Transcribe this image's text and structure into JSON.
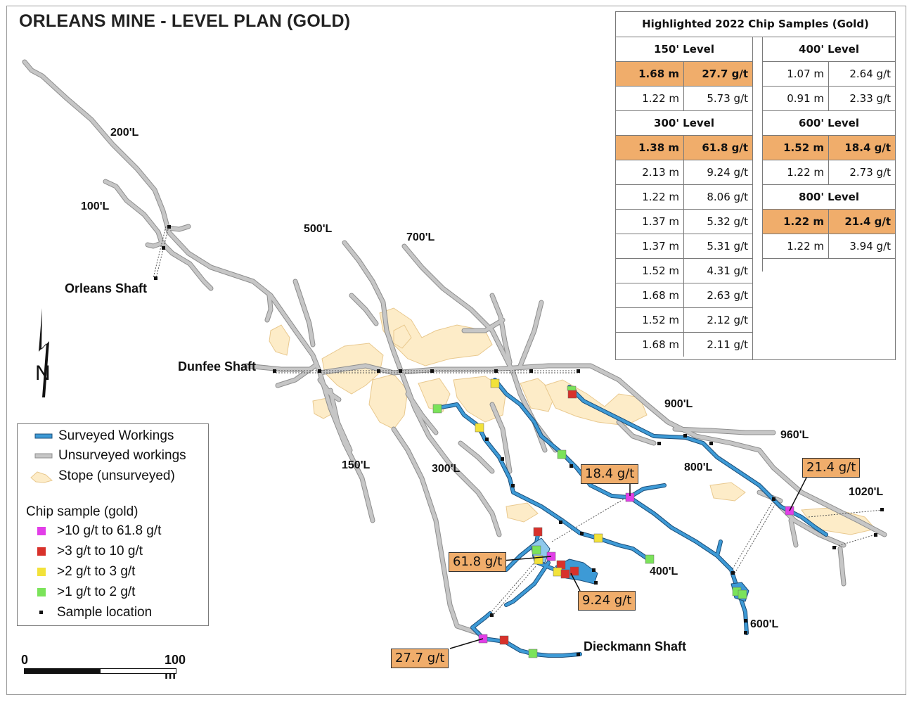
{
  "title": "ORLEANS MINE - LEVEL PLAN (GOLD)",
  "colors": {
    "surveyed": "#3d9ad6",
    "unsurveyed": "#c3c3c3",
    "stope": "#fdecc8",
    "highlight": "#f0ad6b",
    "grade_gt10": "#e23ee8",
    "grade_3_10": "#d8312b",
    "grade_2_3": "#f2e23a",
    "grade_1_2": "#7be35a"
  },
  "level_labels": [
    "200'L",
    "100'L",
    "500'L",
    "700'L",
    "150'L",
    "300'L",
    "900'L",
    "960'L",
    "800'L",
    "1020'L",
    "400'L",
    "600'L"
  ],
  "shafts": {
    "orleans": "Orleans Shaft",
    "dunfee": "Dunfee Shaft",
    "dieckmann": "Dieckmann Shaft"
  },
  "north_label": "N",
  "callouts": {
    "c1": "18.4 g/t",
    "c2": "21.4 g/t",
    "c3": "61.8 g/t",
    "c4": "9.24 g/t",
    "c5": "27.7 g/t"
  },
  "table": {
    "title": "Highlighted 2022 Chip Samples (Gold)",
    "left_groups": [
      {
        "level": "150' Level",
        "rows": [
          {
            "width": "1.68 m",
            "grade": "27.7 g/t",
            "highlight": true
          },
          {
            "width": "1.22 m",
            "grade": "5.73 g/t",
            "highlight": false
          }
        ]
      },
      {
        "level": "300' Level",
        "rows": [
          {
            "width": "1.38 m",
            "grade": "61.8 g/t",
            "highlight": true
          },
          {
            "width": "2.13 m",
            "grade": "9.24 g/t",
            "highlight": false
          },
          {
            "width": "1.22 m",
            "grade": "8.06 g/t",
            "highlight": false
          },
          {
            "width": "1.37 m",
            "grade": "5.32 g/t",
            "highlight": false
          },
          {
            "width": "1.37 m",
            "grade": "5.31 g/t",
            "highlight": false
          },
          {
            "width": "1.52 m",
            "grade": "4.31 g/t",
            "highlight": false
          },
          {
            "width": "1.68 m",
            "grade": "2.63 g/t",
            "highlight": false
          },
          {
            "width": "1.52 m",
            "grade": "2.12 g/t",
            "highlight": false
          },
          {
            "width": "1.68 m",
            "grade": "2.11 g/t",
            "highlight": false
          }
        ]
      }
    ],
    "right_groups": [
      {
        "level": "400' Level",
        "rows": [
          {
            "width": "1.07 m",
            "grade": "2.64 g/t",
            "highlight": false
          },
          {
            "width": "0.91 m",
            "grade": "2.33 g/t",
            "highlight": false
          }
        ]
      },
      {
        "level": "600' Level",
        "rows": [
          {
            "width": "1.52 m",
            "grade": "18.4 g/t",
            "highlight": true
          },
          {
            "width": "1.22 m",
            "grade": "2.73 g/t",
            "highlight": false
          }
        ]
      },
      {
        "level": "800' Level",
        "rows": [
          {
            "width": "1.22 m",
            "grade": "21.4 g/t",
            "highlight": true
          },
          {
            "width": "1.22 m",
            "grade": "3.94 g/t",
            "highlight": false
          }
        ]
      }
    ]
  },
  "legend": {
    "surveyed": "Surveyed Workings",
    "unsurveyed": "Unsurveyed workings",
    "stope": "Stope (unsurveyed)",
    "chip_header": "Chip sample (gold)",
    "g1": ">10 g/t  to 61.8 g/t",
    "g2": ">3 g/t  to 10 g/t",
    "g3": ">2 g/t  to 3 g/t",
    "g4": ">1 g/t  to 2 g/t",
    "sample": "Sample location"
  },
  "scale": {
    "zero": "0",
    "max": "100 m"
  }
}
